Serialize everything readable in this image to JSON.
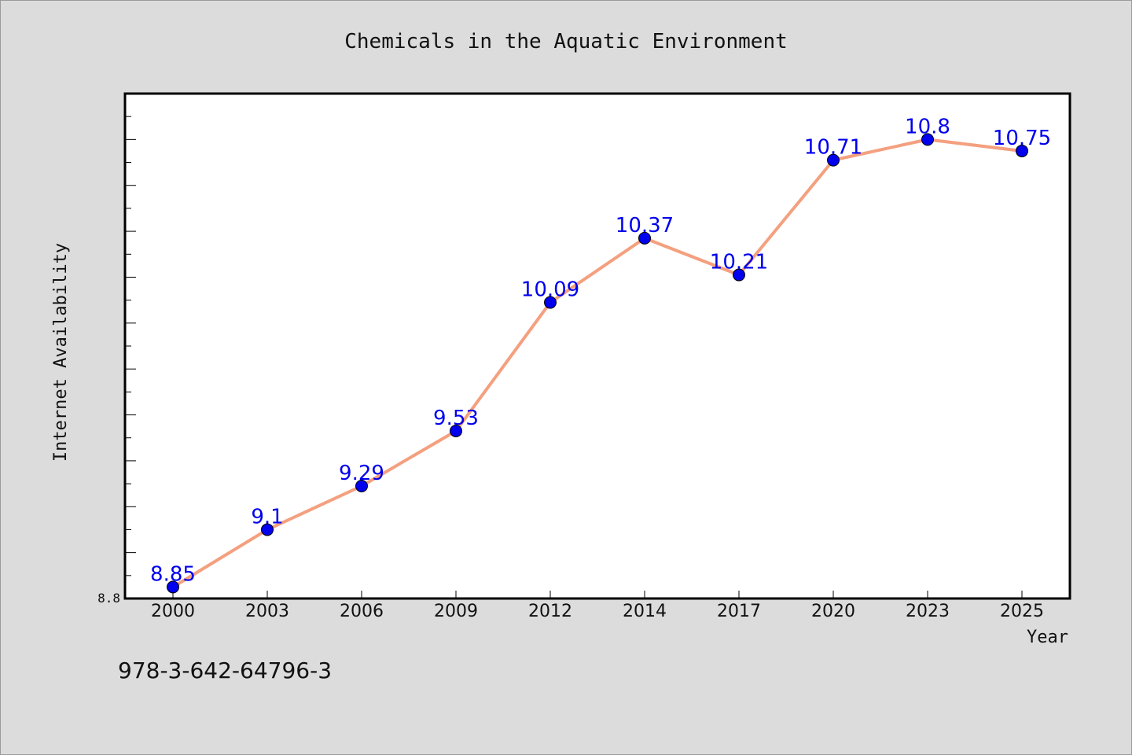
{
  "chart_data": {
    "type": "line",
    "title": "Chemicals in the Aquatic Environment",
    "xlabel": "Year",
    "ylabel": "Internet Availability",
    "categories": [
      "2000",
      "2003",
      "2006",
      "2009",
      "2012",
      "2014",
      "2017",
      "2020",
      "2023",
      "2025"
    ],
    "series": [
      {
        "values": [
          8.85,
          9.1,
          9.29,
          9.53,
          10.09,
          10.37,
          10.21,
          10.71,
          10.8,
          10.75
        ]
      }
    ],
    "data_labels": [
      "8.85",
      "9.1",
      "9.29",
      "9.53",
      "10.09",
      "10.37",
      "10.21",
      "10.71",
      "10.8",
      "10.75"
    ],
    "ylim": [
      8.8,
      11.0
    ],
    "ytick_labels": [
      "8.8"
    ],
    "grid": false,
    "legend": "none",
    "colors": {
      "line": "#f4a07f",
      "marker": "#0000ee",
      "data_label": "#0000ee",
      "plot_background": "#ffffff",
      "page_background": "#dcdcdc"
    }
  },
  "footer_note": "978-3-642-64796-3"
}
